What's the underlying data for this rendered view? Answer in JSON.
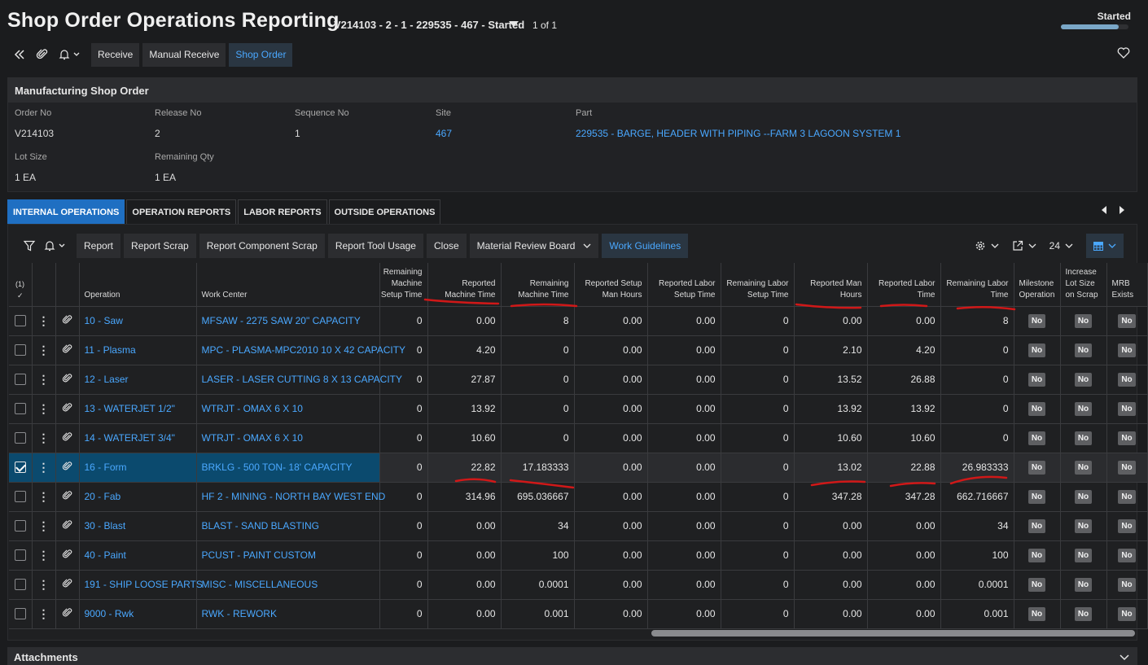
{
  "header": {
    "title": "Shop Order Operations Reporting",
    "record_id": "V214103 - 2 - 1 - 229535 - 467 - Started",
    "record_count": "1 of 1",
    "status": "Started",
    "status_progress": 0.85
  },
  "toolbar": {
    "buttons": [
      "Receive",
      "Manual Receive",
      "Shop Order"
    ]
  },
  "shop_order": {
    "title": "Manufacturing Shop Order",
    "fields": [
      {
        "label": "Order No",
        "value": "V214103"
      },
      {
        "label": "Release No",
        "value": "2"
      },
      {
        "label": "Sequence No",
        "value": "1"
      },
      {
        "label": "Site",
        "value": "467"
      },
      {
        "label": "Part",
        "value": "229535 - BARGE, HEADER WITH PIPING --FARM 3 LAGOON SYSTEM 1"
      },
      {
        "label": "Lot Size",
        "value": "1 EA"
      },
      {
        "label": "Remaining Qty",
        "value": "1 EA"
      }
    ]
  },
  "tabs": [
    "INTERNAL OPERATIONS",
    "OPERATION REPORTS",
    "LABOR REPORTS",
    "OUTSIDE OPERATIONS"
  ],
  "grid_toolbar": {
    "buttons": [
      "Report",
      "Report Scrap",
      "Report Component Scrap",
      "Report Tool Usage",
      "Close",
      "Material Review Board",
      "Work Guidelines"
    ],
    "page_size": "24"
  },
  "table": {
    "selected_count": "(1)",
    "columns": [
      "Operation",
      "Work Center",
      "Remaining Machine Setup Time",
      "Reported Machine Time",
      "Remaining Machine Time",
      "Reported Setup Man Hours",
      "Reported Labor Setup Time",
      "Remaining Labor Setup Time",
      "Reported Man Hours",
      "Reported Labor Time",
      "Remaining Labor Time",
      "Milestone Operation",
      "Increase Lot Size on Scrap",
      "MRB Exists"
    ],
    "rows": [
      {
        "op": "10 - Saw",
        "wc": "MFSAW - 2275 SAW 20\" CAPACITY",
        "v": [
          "0",
          "0.00",
          "8",
          "0.00",
          "0.00",
          "0",
          "0.00",
          "0.00",
          "8"
        ],
        "flags": [
          "No",
          "No",
          "No"
        ]
      },
      {
        "op": "11 - Plasma",
        "wc": "MPC - PLASMA-MPC2010 10 X 42 CAPACITY",
        "v": [
          "0",
          "4.20",
          "0",
          "0.00",
          "0.00",
          "0",
          "2.10",
          "4.20",
          "0"
        ],
        "flags": [
          "No",
          "No",
          "No"
        ]
      },
      {
        "op": "12 - Laser",
        "wc": "LASER - LASER CUTTING 8 X 13 CAPACITY",
        "v": [
          "0",
          "27.87",
          "0",
          "0.00",
          "0.00",
          "0",
          "13.52",
          "26.88",
          "0"
        ],
        "flags": [
          "No",
          "No",
          "No"
        ]
      },
      {
        "op": "13 - WATERJET 1/2\"",
        "wc": "WTRJT - OMAX 6 X 10",
        "v": [
          "0",
          "13.92",
          "0",
          "0.00",
          "0.00",
          "0",
          "13.92",
          "13.92",
          "0"
        ],
        "flags": [
          "No",
          "No",
          "No"
        ]
      },
      {
        "op": "14 - WATERJET 3/4\"",
        "wc": "WTRJT - OMAX 6 X 10",
        "v": [
          "0",
          "10.60",
          "0",
          "0.00",
          "0.00",
          "0",
          "10.60",
          "10.60",
          "0"
        ],
        "flags": [
          "No",
          "No",
          "No"
        ]
      },
      {
        "op": "16 - Form",
        "wc": "BRKLG - 500 TON- 18' CAPACITY",
        "v": [
          "0",
          "22.82",
          "17.183333",
          "0.00",
          "0.00",
          "0",
          "13.02",
          "22.88",
          "26.983333"
        ],
        "flags": [
          "No",
          "No",
          "No"
        ],
        "selected": true
      },
      {
        "op": "20 - Fab",
        "wc": "HF 2 - MINING - NORTH BAY WEST END",
        "v": [
          "0",
          "314.96",
          "695.036667",
          "0.00",
          "0.00",
          "0",
          "347.28",
          "347.28",
          "662.716667"
        ],
        "flags": [
          "No",
          "No",
          "No"
        ]
      },
      {
        "op": "30 - Blast",
        "wc": "BLAST - SAND BLASTING",
        "v": [
          "0",
          "0.00",
          "34",
          "0.00",
          "0.00",
          "0",
          "0.00",
          "0.00",
          "34"
        ],
        "flags": [
          "No",
          "No",
          "No"
        ]
      },
      {
        "op": "40 - Paint",
        "wc": "PCUST - PAINT CUSTOM",
        "v": [
          "0",
          "0.00",
          "100",
          "0.00",
          "0.00",
          "0",
          "0.00",
          "0.00",
          "100"
        ],
        "flags": [
          "No",
          "No",
          "No"
        ]
      },
      {
        "op": "191 - SHIP LOOSE PARTS",
        "wc": "MISC - MISCELLANEOUS",
        "v": [
          "0",
          "0.00",
          "0.0001",
          "0.00",
          "0.00",
          "0",
          "0.00",
          "0.00",
          "0.0001"
        ],
        "flags": [
          "No",
          "No",
          "No"
        ]
      },
      {
        "op": "9000 - Rwk",
        "wc": "RWK - REWORK",
        "v": [
          "0",
          "0.00",
          "0.001",
          "0.00",
          "0.00",
          "0",
          "0.00",
          "0.00",
          "0.001"
        ],
        "flags": [
          "No",
          "No",
          "No"
        ]
      }
    ]
  },
  "attachments": {
    "title": "Attachments"
  },
  "colors": {
    "accent": "#1f6fc2",
    "link": "#4aa8ff",
    "annotation": "#d01818"
  }
}
